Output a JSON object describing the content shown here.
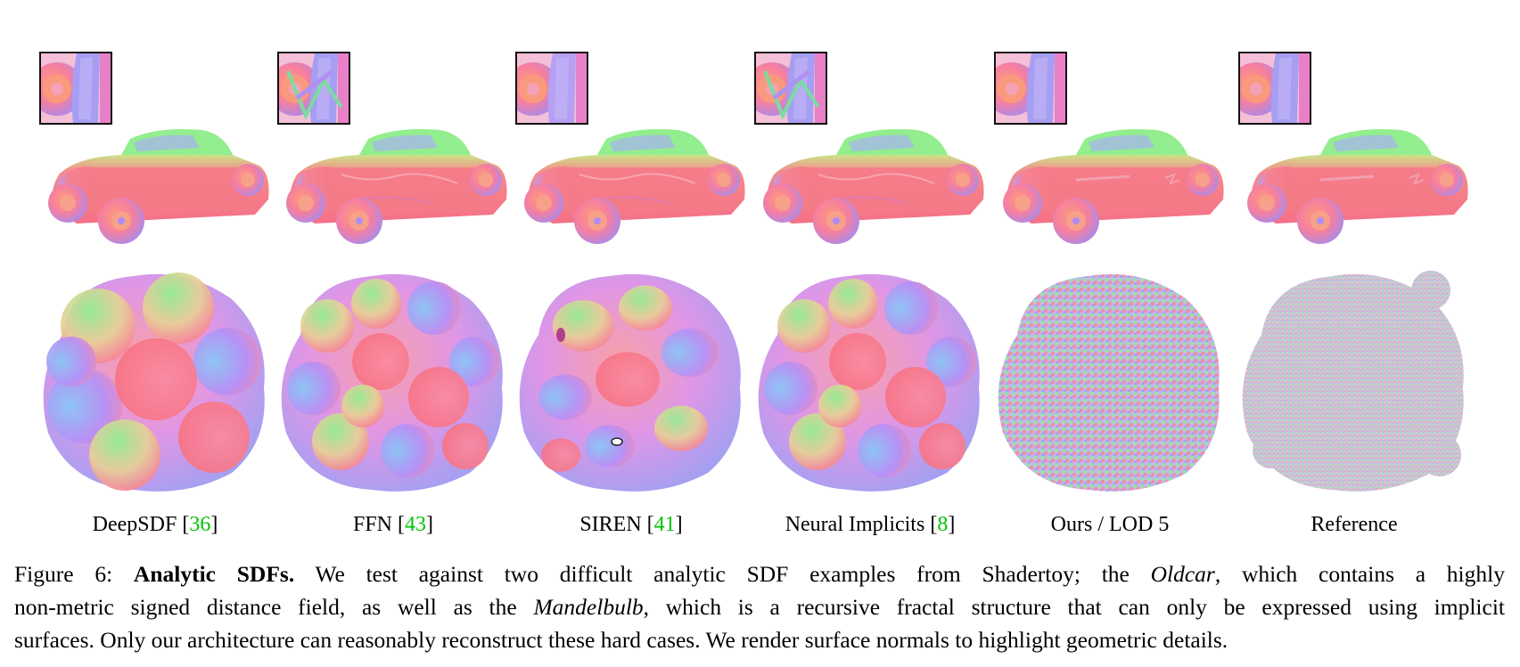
{
  "columns": [
    {
      "method": "DeepSDF",
      "ref": "36",
      "style": "smooth"
    },
    {
      "method": "FFN",
      "ref": "43",
      "style": "lumpy"
    },
    {
      "method": "SIREN",
      "ref": "41",
      "style": "blobby"
    },
    {
      "method": "Neural Implicits",
      "ref": "8",
      "style": "lumpy"
    },
    {
      "method": "Ours / LOD 5",
      "ref": "",
      "style": "detailed"
    },
    {
      "method": "Reference",
      "ref": "",
      "style": "fine"
    }
  ],
  "caption": {
    "figure_label": "Figure 6:",
    "title": "Analytic SDFs.",
    "text_1": "We test against two difficult analytic SDF examples from Shadertoy; the",
    "italic_1": "Oldcar",
    "text_2": ", which contains a highly",
    "text_3": "non-metric signed distance field, as well as the",
    "italic_2": "Mandelbulb",
    "text_4": ", which is a recursive fractal structure that can only be expressed using implicit",
    "text_5": "surfaces. Only our architecture can reasonably reconstruct these hard cases. We render surface normals to highlight geometric details."
  },
  "colors": {
    "car_body": "#f47a86",
    "normal_green": "#86f08c",
    "normal_blue": "#9a8cf5",
    "citation_green": "#00c400"
  }
}
